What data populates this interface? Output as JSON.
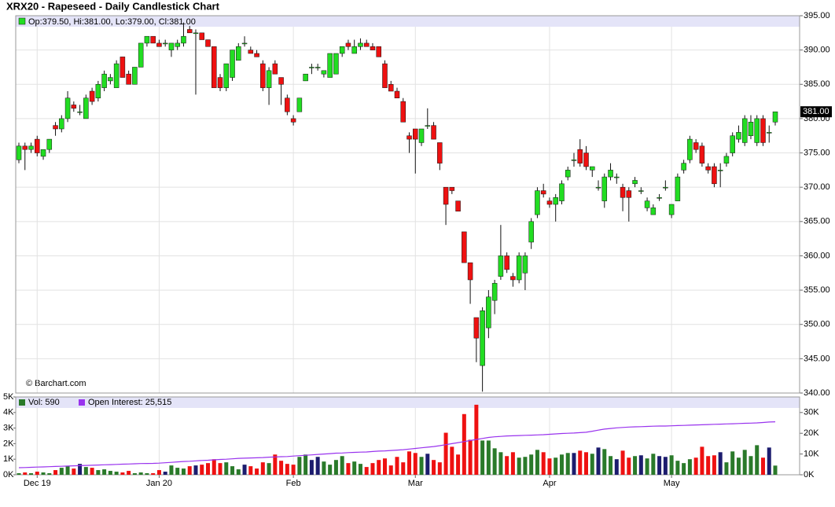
{
  "chart_data": {
    "type": "candlestick",
    "title": "XRX20 - Rapeseed - Daily Candlestick Chart",
    "legend_text": "Op:379.50, Hi:381.00, Lo:379.00, Cl:381.00",
    "credit": "© Barchart.com",
    "grid": true,
    "colors": {
      "up": "#22dd22",
      "down": "#ee1111",
      "outline": "#111111"
    },
    "categories": [
      null,
      null,
      null,
      "Dec 19",
      null,
      null,
      null,
      null,
      null,
      null,
      null,
      null,
      null,
      null,
      null,
      null,
      null,
      null,
      null,
      null,
      null,
      null,
      null,
      "Jan 20",
      null,
      null,
      null,
      null,
      null,
      null,
      null,
      null,
      null,
      null,
      null,
      null,
      null,
      null,
      null,
      null,
      null,
      null,
      null,
      null,
      null,
      "Feb",
      null,
      null,
      null,
      null,
      null,
      null,
      null,
      null,
      null,
      null,
      null,
      null,
      null,
      null,
      null,
      null,
      null,
      null,
      null,
      "Mar",
      null,
      null,
      null,
      null,
      null,
      null,
      null,
      null,
      null,
      null,
      null,
      null,
      null,
      null,
      null,
      null,
      null,
      null,
      null,
      null,
      null,
      "Apr",
      null,
      null,
      null,
      null,
      null,
      null,
      null,
      null,
      null,
      null,
      null,
      null,
      null,
      null,
      null,
      null,
      null,
      null,
      null,
      "May",
      null,
      null,
      null,
      null,
      null,
      null,
      null,
      null,
      null,
      null,
      null,
      null,
      null,
      null,
      null,
      null,
      null
    ],
    "ohlc": [
      [
        374,
        376.5,
        373.5,
        376
      ],
      [
        376,
        376.5,
        372.5,
        375.5
      ],
      [
        375.5,
        376.5,
        375,
        376
      ],
      [
        377,
        377.5,
        374.5,
        375
      ],
      [
        374.5,
        375.5,
        374,
        375.5
      ],
      [
        375.5,
        377,
        375,
        377
      ],
      [
        379,
        379.5,
        377.5,
        378.5
      ],
      [
        378.5,
        380.5,
        378,
        380
      ],
      [
        380,
        384,
        379.5,
        383
      ],
      [
        382,
        382.5,
        381,
        381.5
      ],
      [
        381,
        382,
        380.5,
        381
      ],
      [
        380,
        383.5,
        380,
        383
      ],
      [
        384,
        384.5,
        382,
        382.5
      ],
      [
        383,
        385.5,
        382.5,
        385
      ],
      [
        384.5,
        387,
        384,
        386.5
      ],
      [
        385.5,
        386.5,
        385,
        386
      ],
      [
        384.5,
        388.5,
        384.5,
        388
      ],
      [
        389,
        389,
        386,
        386
      ],
      [
        386.5,
        387,
        385,
        385
      ],
      [
        385,
        387.5,
        385,
        387.5
      ],
      [
        387.5,
        391,
        387.5,
        391
      ],
      [
        391,
        392,
        390.5,
        392
      ],
      [
        392,
        392,
        391,
        391
      ],
      [
        391,
        391.5,
        390.5,
        390.5
      ],
      [
        391,
        391.5,
        390.5,
        391
      ],
      [
        390,
        391,
        389,
        391
      ],
      [
        390.5,
        391.5,
        390,
        391
      ],
      [
        391,
        394,
        390.5,
        392
      ],
      [
        393,
        393.5,
        392.5,
        392.5
      ],
      [
        392.5,
        393,
        383.5,
        392.5
      ],
      [
        392.5,
        392.5,
        391.5,
        391.5
      ],
      [
        391.5,
        391.5,
        390.5,
        390.5
      ],
      [
        390.5,
        390.5,
        384.5,
        384.5
      ],
      [
        386,
        386.5,
        384,
        384.5
      ],
      [
        384.5,
        388,
        384,
        388
      ],
      [
        386,
        390,
        385.5,
        390
      ],
      [
        388.5,
        391,
        388.5,
        390.5
      ],
      [
        391,
        392,
        390.5,
        391
      ],
      [
        390,
        390.5,
        389.5,
        389.5
      ],
      [
        389.5,
        390,
        389,
        389
      ],
      [
        388,
        388.5,
        384,
        384.5
      ],
      [
        384.5,
        387.5,
        382,
        387
      ],
      [
        388,
        388.5,
        386.5,
        386.5
      ],
      [
        386,
        386,
        382,
        385
      ],
      [
        383,
        383.5,
        380.5,
        381
      ],
      [
        380,
        380.5,
        379,
        379.5
      ],
      [
        381,
        383,
        381,
        383
      ],
      [
        385.5,
        386.5,
        385.5,
        386.5
      ],
      [
        387.5,
        388,
        386.5,
        387.5
      ],
      [
        387.5,
        388,
        387,
        387.5
      ],
      [
        386.5,
        387,
        386,
        387
      ],
      [
        386,
        389.5,
        386,
        389.5
      ],
      [
        386.5,
        389.5,
        386.5,
        389.5
      ],
      [
        389.5,
        390.5,
        389,
        390.5
      ],
      [
        391,
        391.5,
        390,
        390.5
      ],
      [
        389.5,
        391.5,
        389.5,
        390.5
      ],
      [
        390.5,
        391.7,
        390,
        391
      ],
      [
        391,
        391.5,
        390.5,
        390.5
      ],
      [
        390.5,
        391,
        390,
        390
      ],
      [
        390.5,
        390.5,
        389,
        389
      ],
      [
        388,
        388.5,
        384.5,
        384.5
      ],
      [
        385,
        385.5,
        384,
        384
      ],
      [
        384,
        384.5,
        383,
        383
      ],
      [
        382.5,
        383,
        379.5,
        379.5
      ],
      [
        377.5,
        378,
        375,
        377
      ],
      [
        378.5,
        378.5,
        372,
        377
      ],
      [
        376.5,
        378.5,
        376,
        378.5
      ],
      [
        379,
        381.5,
        378.5,
        379
      ],
      [
        379,
        379.5,
        377,
        377
      ],
      [
        376.5,
        376.5,
        372.5,
        373.5
      ],
      [
        370,
        370,
        364.5,
        367.5
      ],
      [
        370,
        370,
        369,
        369.5
      ],
      [
        368,
        368,
        366.5,
        366.5
      ],
      [
        363.5,
        363.5,
        359,
        359
      ],
      [
        359,
        359,
        353,
        356.5
      ],
      [
        351,
        351,
        344.5,
        348
      ],
      [
        344,
        352.5,
        340.2,
        352
      ],
      [
        349.5,
        355,
        348,
        354
      ],
      [
        353.5,
        356.5,
        351.5,
        356
      ],
      [
        357,
        364.5,
        356.5,
        360
      ],
      [
        360,
        360.5,
        357.5,
        358
      ],
      [
        357,
        357.5,
        355.5,
        356.5
      ],
      [
        356.5,
        360.5,
        356,
        360
      ],
      [
        357.5,
        360.5,
        355,
        360
      ],
      [
        362,
        365.5,
        361,
        365
      ],
      [
        366,
        370,
        365.5,
        369.5
      ],
      [
        369.5,
        370.5,
        368.5,
        369
      ],
      [
        368,
        368.5,
        367,
        367.5
      ],
      [
        367.5,
        369,
        365,
        368.5
      ],
      [
        368,
        371,
        367.5,
        370.5
      ],
      [
        371.5,
        373,
        371,
        372.5
      ],
      [
        374,
        375,
        373,
        374
      ],
      [
        375.5,
        377,
        373,
        373.5
      ],
      [
        375,
        376,
        372.5,
        373
      ],
      [
        372.5,
        373,
        371.5,
        373
      ],
      [
        370,
        371,
        369.5,
        370
      ],
      [
        368,
        372,
        367,
        371.5
      ],
      [
        371.5,
        373.5,
        371,
        372.5
      ],
      [
        371.5,
        372,
        370.5,
        371.5
      ],
      [
        370,
        370.5,
        366.5,
        368.5
      ],
      [
        369.5,
        370,
        365,
        368.5
      ],
      [
        370.5,
        371.5,
        370,
        371
      ],
      [
        369.5,
        370,
        369,
        369.5
      ],
      [
        367,
        368.5,
        366.5,
        368
      ],
      [
        366,
        367.5,
        366,
        367
      ],
      [
        368.5,
        369,
        368,
        368.5
      ],
      [
        370,
        371,
        369.5,
        370
      ],
      [
        366,
        367.5,
        365.5,
        367.5
      ],
      [
        368,
        372,
        368,
        371.5
      ],
      [
        372.5,
        374,
        372,
        373.5
      ],
      [
        374,
        377.5,
        373.5,
        377
      ],
      [
        376.5,
        377,
        375,
        375.5
      ],
      [
        376,
        376.5,
        373,
        373.5
      ],
      [
        373,
        373.5,
        372,
        372.5
      ],
      [
        373,
        373.5,
        370,
        370.5
      ],
      [
        372.5,
        373.5,
        370,
        372.5
      ],
      [
        373.5,
        375,
        373,
        374.5
      ],
      [
        375,
        378,
        374.5,
        377.5
      ],
      [
        377,
        379,
        376.5,
        378
      ],
      [
        376.5,
        380.5,
        376,
        380
      ],
      [
        377.5,
        380.5,
        377,
        379.5
      ],
      [
        376.5,
        380.5,
        376,
        380
      ],
      [
        380,
        380.5,
        376,
        376.5
      ],
      [
        378,
        379,
        376.5,
        378
      ],
      [
        379.5,
        381,
        379,
        381
      ]
    ],
    "ylim": [
      340,
      395
    ],
    "yticks": [
      {
        "value": 340,
        "label": "340.00"
      },
      {
        "value": 345,
        "label": "345.00"
      },
      {
        "value": 350,
        "label": "350.00"
      },
      {
        "value": 355,
        "label": "355.00"
      },
      {
        "value": 360,
        "label": "360.00"
      },
      {
        "value": 365,
        "label": "365.00"
      },
      {
        "value": 370,
        "label": "370.00"
      },
      {
        "value": 375,
        "label": "375.00"
      },
      {
        "value": 380,
        "label": "380.00"
      },
      {
        "value": 385,
        "label": "385.00"
      },
      {
        "value": 390,
        "label": "390.00"
      },
      {
        "value": 395,
        "label": "395.00"
      }
    ],
    "last_price": {
      "value": 381,
      "label": "381.00"
    },
    "volume": {
      "legend": "Vol: 590",
      "colors": {
        "up": "#2a7a2a",
        "down": "#ee1111",
        "flat": "#1c1c6e"
      },
      "values": [
        100,
        150,
        100,
        200,
        150,
        100,
        300,
        450,
        550,
        400,
        700,
        500,
        450,
        300,
        350,
        250,
        200,
        150,
        250,
        100,
        150,
        100,
        100,
        300,
        200,
        600,
        450,
        400,
        550,
        600,
        650,
        750,
        1000,
        750,
        800,
        550,
        350,
        650,
        550,
        400,
        800,
        750,
        1300,
        900,
        700,
        650,
        1150,
        1300,
        950,
        1150,
        850,
        650,
        950,
        1200,
        750,
        850,
        700,
        500,
        750,
        950,
        1050,
        600,
        1150,
        800,
        1500,
        1400,
        1150,
        1350,
        950,
        800,
        2700,
        1800,
        1300,
        3900,
        2250,
        4500,
        2200,
        2200,
        1700,
        1450,
        1200,
        1450,
        1100,
        1150,
        1300,
        1600,
        1450,
        1050,
        1100,
        1300,
        1400,
        1400,
        1550,
        1450,
        1350,
        1750,
        1650,
        1200,
        1000,
        1550,
        1100,
        1200,
        1250,
        1050,
        1350,
        1200,
        1150,
        1250,
        900,
        750,
        1000,
        1100,
        1800,
        1200,
        1250,
        1450,
        800,
        1500,
        1100,
        1600,
        1200,
        1900,
        1100,
        1750,
        590
      ],
      "ylim": [
        0,
        5000
      ],
      "yticks": [
        {
          "value": 0,
          "label": "0K"
        },
        {
          "value": 1000,
          "label": "1K"
        },
        {
          "value": 2000,
          "label": "2K"
        },
        {
          "value": 3000,
          "label": "3K"
        },
        {
          "value": 4000,
          "label": "4K"
        },
        {
          "value": 5000,
          "label": "5K"
        }
      ]
    },
    "open_interest": {
      "legend": "Open Interest: 25,515",
      "color": "#9933ee",
      "axis": "y2",
      "values": [
        3400,
        3500,
        3600,
        3700,
        3800,
        3900,
        4000,
        4100,
        4200,
        4300,
        4400,
        4500,
        4600,
        4700,
        4800,
        4900,
        5000,
        5100,
        5200,
        5300,
        5400,
        5450,
        5500,
        5600,
        5800,
        6000,
        6200,
        6400,
        6500,
        6700,
        6900,
        7000,
        7200,
        7400,
        7500,
        7700,
        7900,
        8000,
        8100,
        8200,
        8300,
        8500,
        8600,
        8700,
        8800,
        9000,
        9200,
        9400,
        9600,
        9800,
        10000,
        10200,
        10400,
        10500,
        10700,
        10800,
        10900,
        11000,
        11200,
        11400,
        11500,
        11700,
        11900,
        12100,
        12400,
        12700,
        13000,
        13300,
        13600,
        14000,
        14500,
        15000,
        15500,
        16000,
        16500,
        17000,
        17500,
        18000,
        18300,
        18500,
        18700,
        18800,
        18900,
        19000,
        19100,
        19200,
        19300,
        19500,
        19700,
        19900,
        20000,
        20100,
        20300,
        20500,
        21000,
        21500,
        22000,
        22300,
        22600,
        22800,
        23000,
        23100,
        23200,
        23300,
        23400,
        23500,
        23500,
        23600,
        23700,
        23800,
        23900,
        24000,
        24100,
        24200,
        24300,
        24400,
        24500,
        24600,
        24700,
        24800,
        24900,
        25000,
        25200,
        25400,
        25515
      ],
      "y2lim": [
        0,
        37500
      ],
      "y2ticks": [
        {
          "value": 0,
          "label": "0K"
        },
        {
          "value": 10000,
          "label": "10K"
        },
        {
          "value": 20000,
          "label": "20K"
        },
        {
          "value": 30000,
          "label": "30K"
        }
      ]
    }
  }
}
